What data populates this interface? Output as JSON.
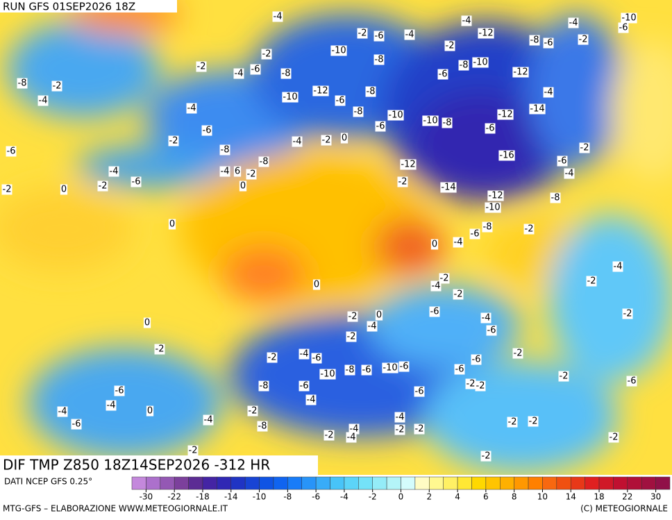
{
  "header": {
    "title": "RUN GFS 01SEP2026 18Z"
  },
  "map": {
    "label": "DIF TMP Z850 18Z14SEP2026 -312 HR",
    "contour_labels": [
      -4,
      -2,
      -6,
      -4,
      -4,
      -12,
      -8,
      -6,
      -4,
      -10,
      -6,
      -2,
      -10,
      -8,
      -2,
      -10,
      -8,
      -2,
      -4,
      -6,
      -8,
      -2,
      -8,
      -2,
      -4,
      -12,
      -10,
      -6,
      -8,
      -6,
      -12,
      -4,
      -4,
      -8,
      -10,
      -6,
      -12,
      -14,
      -10,
      -8,
      -6,
      -6,
      -4,
      -2,
      0,
      -2,
      -8,
      -6,
      -8,
      -12,
      -16,
      -6,
      -2,
      -4,
      -4,
      6,
      -2,
      -6,
      0,
      -2,
      -2,
      -14,
      -4,
      -2,
      0,
      -12,
      -10,
      -8,
      0,
      -8,
      -6,
      -2,
      0,
      -4,
      -4,
      -2,
      -4,
      0,
      -2,
      -2,
      -6,
      -2,
      -4,
      0,
      -2,
      0,
      -4,
      -6,
      -2,
      -2,
      -2,
      -4,
      -6,
      -6,
      -2,
      -10,
      -8,
      -6,
      -10,
      -6,
      -6,
      -2,
      -2,
      -2,
      -6,
      -8,
      -6,
      -6,
      -6,
      -4,
      -4,
      0,
      -4,
      -4,
      -2,
      -8,
      -4,
      -2,
      -2,
      -6,
      -4,
      -2,
      -2,
      -4,
      -2,
      -2,
      -2,
      -2
    ]
  },
  "legend": {
    "source": "DATI NCEP GFS 0.25°",
    "colors": [
      "#c488dc",
      "#ac70cc",
      "#9458b4",
      "#7c409c",
      "#5c2c94",
      "#4424a4",
      "#3028b4",
      "#2034c4",
      "#1844d4",
      "#1054e4",
      "#1064f0",
      "#187cf8",
      "#2894f8",
      "#38acf8",
      "#48c4f8",
      "#5cd4f8",
      "#74e2f8",
      "#94ecf8",
      "#b4f4f8",
      "#d4fcfc",
      "#fffcc4",
      "#fff890",
      "#fff064",
      "#ffe834",
      "#ffd800",
      "#ffc400",
      "#ffb000",
      "#ff9800",
      "#ff8000",
      "#f86810",
      "#f05010",
      "#e83818",
      "#e02020",
      "#d01828",
      "#c01030",
      "#b01038",
      "#a01040",
      "#901048"
    ],
    "ticks": [
      -30,
      -22,
      -18,
      -14,
      -10,
      -8,
      -6,
      -4,
      -2,
      0,
      2,
      4,
      6,
      8,
      10,
      14,
      18,
      22,
      30
    ]
  },
  "footer": {
    "credit": "MTG-GFS – ELABORAZIONE WWW.METEOGIORNALE.IT",
    "copyright": "(C) METEOGIORNALE"
  }
}
